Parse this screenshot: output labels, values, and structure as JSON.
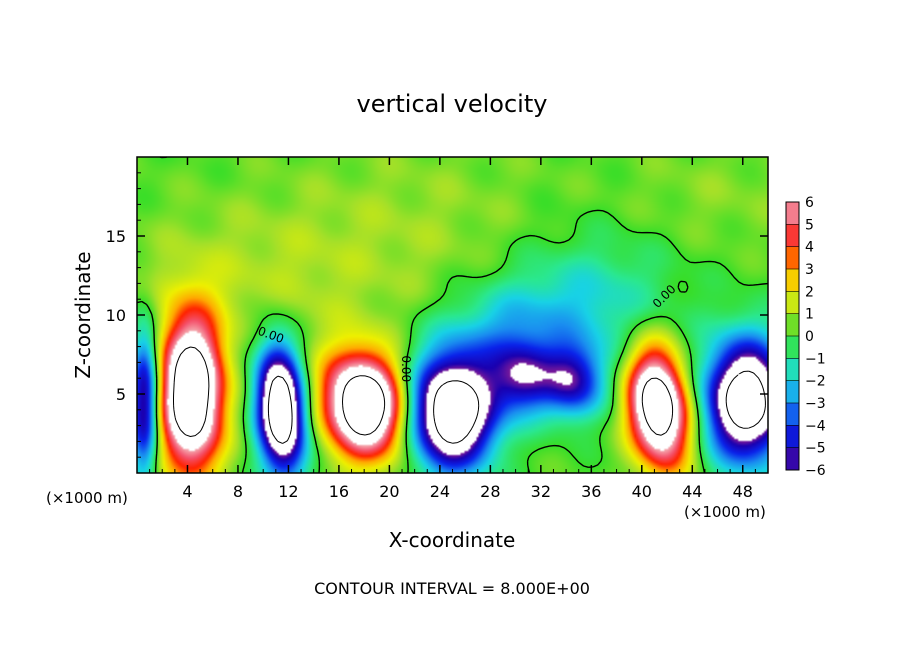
{
  "chart_data": {
    "type": "heatmap",
    "title": "vertical velocity",
    "xlabel": "X-coordinate",
    "ylabel": "Z-coordinate",
    "x_unit": "(×1000 m)",
    "y_unit": "(×1000 m)",
    "footer": "CONTOUR INTERVAL = 8.000E+00",
    "xlim": [
      0,
      50
    ],
    "ylim": [
      0,
      20
    ],
    "x_ticks": [
      4,
      8,
      12,
      16,
      20,
      24,
      28,
      32,
      36,
      40,
      44,
      48
    ],
    "y_ticks": [
      5,
      10,
      15
    ],
    "colorbar": {
      "range": [
        -6,
        6
      ],
      "ticks": [
        6,
        5,
        4,
        3,
        2,
        1,
        0,
        -1,
        -2,
        -3,
        -4,
        -5,
        -6
      ],
      "tick_labels": [
        "6",
        "5",
        "4",
        "3",
        "2",
        "1",
        "0",
        "−1",
        "−2",
        "−3",
        "−4",
        "−5",
        "−6"
      ],
      "colors": [
        {
          "v": -6,
          "c": "#7a1a9a"
        },
        {
          "v": -5.3,
          "c": "#1a00b0"
        },
        {
          "v": -4.2,
          "c": "#0a22ea"
        },
        {
          "v": -3,
          "c": "#1a8ef0"
        },
        {
          "v": -2,
          "c": "#18d2e6"
        },
        {
          "v": -1,
          "c": "#2ae890"
        },
        {
          "v": 0,
          "c": "#38de28"
        },
        {
          "v": 1,
          "c": "#a6e028"
        },
        {
          "v": 2,
          "c": "#eef000"
        },
        {
          "v": 3,
          "c": "#ffaa00"
        },
        {
          "v": 4,
          "c": "#ff2200"
        },
        {
          "v": 5,
          "c": "#f4506a"
        },
        {
          "v": 6,
          "c": "#f4aab0"
        }
      ],
      "saturated_color": "#ffffff"
    },
    "contour_labels": [
      "0.00",
      "0.00",
      "0.00"
    ],
    "field": {
      "background": 0.2,
      "features": [
        {
          "x": 4.3,
          "z": 5.0,
          "sx": 1.7,
          "sz": 3.3,
          "a": 11.0,
          "rot": 0
        },
        {
          "x": 18.0,
          "z": 4.3,
          "sx": 2.3,
          "sz": 2.1,
          "a": 11.0,
          "rot": -0.8
        },
        {
          "x": 41.3,
          "z": 4.2,
          "sx": 1.6,
          "sz": 2.6,
          "a": 10.5,
          "rot": 0.2
        },
        {
          "x": 0.6,
          "z": 4.5,
          "sx": 0.8,
          "sz": 3.3,
          "a": -6.5,
          "rot": 0
        },
        {
          "x": 11.4,
          "z": 4.0,
          "sx": 1.3,
          "sz": 2.8,
          "a": -11.0,
          "rot": 0.1
        },
        {
          "x": 25.0,
          "z": 3.8,
          "sx": 2.3,
          "sz": 2.4,
          "a": -11.0,
          "rot": 0
        },
        {
          "x": 30.6,
          "z": 6.0,
          "sx": 1.8,
          "sz": 1.6,
          "a": -5.0,
          "rot": 0
        },
        {
          "x": 34.6,
          "z": 5.8,
          "sx": 1.6,
          "sz": 1.6,
          "a": -5.0,
          "rot": 0
        },
        {
          "x": 48.3,
          "z": 4.6,
          "sx": 2.2,
          "sz": 2.6,
          "a": -10.5,
          "rot": 0
        },
        {
          "x": 29.0,
          "z": 9.0,
          "sx": 4.0,
          "sz": 2.2,
          "a": -2.2,
          "rot": 0.2
        },
        {
          "x": 36.5,
          "z": 10.5,
          "sx": 4.5,
          "sz": 3.2,
          "a": -1.8,
          "rot": 0
        },
        {
          "x": 9.0,
          "z": 12.0,
          "sx": 8.0,
          "sz": 3.5,
          "a": 0.9,
          "rot": 0
        },
        {
          "x": 22.0,
          "z": 16.0,
          "sx": 8.0,
          "sz": 4.0,
          "a": 0.6,
          "rot": 0
        },
        {
          "x": 46.0,
          "z": 17.5,
          "sx": 6.0,
          "sz": 2.5,
          "a": 0.5,
          "rot": 0
        }
      ]
    }
  }
}
